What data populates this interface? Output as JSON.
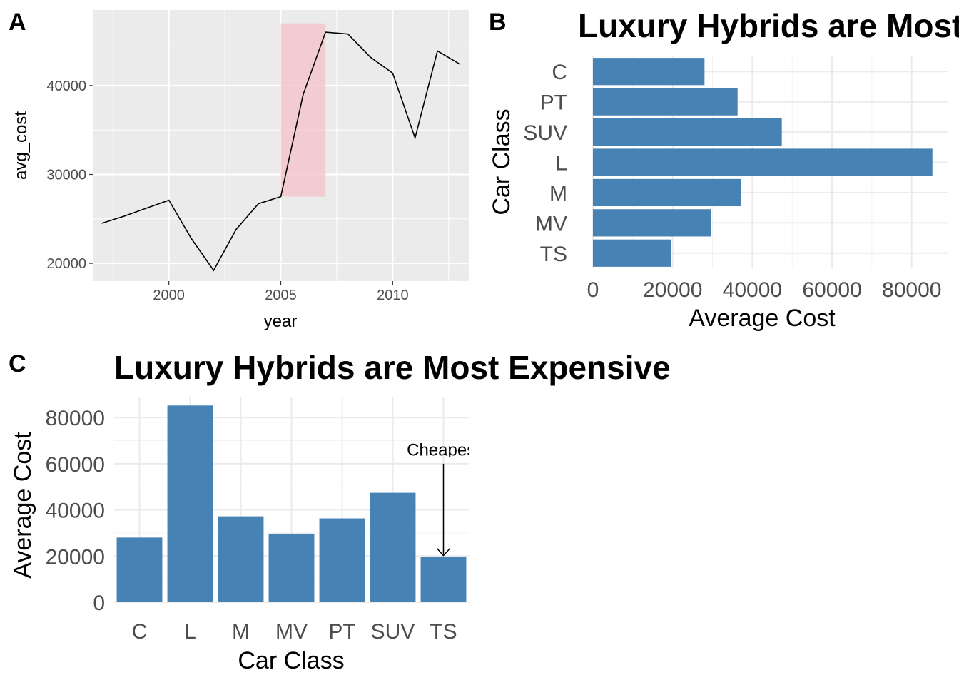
{
  "panels": {
    "a": {
      "tag": "A"
    },
    "b": {
      "tag": "B"
    },
    "c": {
      "tag": "C"
    }
  },
  "chart_data": [
    {
      "type": "line",
      "tag": "A",
      "title": "",
      "xlabel": "year",
      "ylabel": "avg_cost",
      "x": [
        1997,
        1998,
        1999,
        2000,
        2001,
        2002,
        2003,
        2004,
        2005,
        2006,
        2007,
        2008,
        2009,
        2010,
        2011,
        2012,
        2013
      ],
      "series": [
        {
          "values": [
            24500,
            25300,
            26200,
            27100,
            22800,
            19200,
            23800,
            26700,
            27500,
            39000,
            46000,
            45800,
            43200,
            41400,
            34100,
            43900,
            42400
          ]
        }
      ],
      "xlim": [
        1996.6,
        2013.4
      ],
      "ylim": [
        18000,
        48500
      ],
      "xticks": [
        2000,
        2005,
        2010
      ],
      "yticks": [
        20000,
        30000,
        40000
      ],
      "highlight": {
        "x": [
          2005,
          2007
        ],
        "y": [
          27500,
          47000
        ],
        "color": "#f4c2c8"
      },
      "line_color": "#000000",
      "panel_bg": "#ebebeb",
      "grid": true,
      "legend": "none"
    },
    {
      "type": "bar",
      "orientation": "horizontal",
      "tag": "B",
      "title": "Luxury Hybrids are Most Expensive",
      "xlabel": "Average Cost",
      "ylabel": "Car Class",
      "categories": [
        "C",
        "PT",
        "SUV",
        "L",
        "M",
        "MV",
        "TS"
      ],
      "values": [
        28000,
        36300,
        47400,
        85200,
        37200,
        29700,
        19600
      ],
      "xlim": [
        0,
        89000
      ],
      "xticks": [
        0,
        20000,
        40000,
        60000,
        80000
      ],
      "bar_color": "#4682b4",
      "grid": true,
      "legend": "none"
    },
    {
      "type": "bar",
      "orientation": "vertical",
      "tag": "C",
      "title": "Luxury Hybrids are Most Expensive",
      "xlabel": "Car Class",
      "ylabel": "Average Cost",
      "categories": [
        "C",
        "L",
        "M",
        "MV",
        "PT",
        "SUV",
        "TS"
      ],
      "values": [
        28000,
        85200,
        37200,
        29700,
        36300,
        47400,
        19600
      ],
      "ylim": [
        0,
        89000
      ],
      "yticks": [
        0,
        20000,
        40000,
        60000,
        80000
      ],
      "bar_color": "#4682b4",
      "annotation": {
        "text": "Cheapest",
        "category": "TS",
        "arrow_from": 60000,
        "arrow_to": 19600,
        "text_at": 66000
      },
      "grid": true,
      "legend": "none"
    }
  ]
}
